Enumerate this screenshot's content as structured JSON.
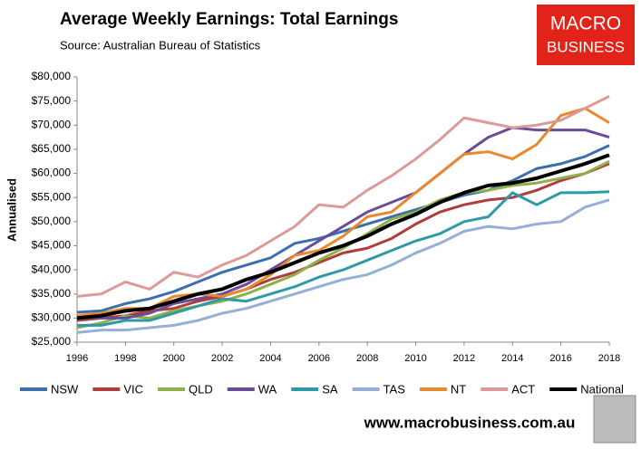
{
  "chart_data": {
    "type": "line",
    "title": "Average Weekly Earnings: Total Earnings",
    "subtitle": "Source: Australian Bureau of Statistics",
    "ylabel": "Annualised",
    "x": [
      1996,
      1997,
      1998,
      1999,
      2000,
      2001,
      2002,
      2003,
      2004,
      2005,
      2006,
      2007,
      2008,
      2009,
      2010,
      2011,
      2012,
      2013,
      2014,
      2015,
      2016,
      2017,
      2018
    ],
    "xlim": [
      1996,
      2018
    ],
    "xticks": [
      1996,
      1998,
      2000,
      2002,
      2004,
      2006,
      2008,
      2010,
      2012,
      2014,
      2016,
      2018
    ],
    "ylim": [
      25000,
      80000
    ],
    "yticks": [
      {
        "value": 25000,
        "label": "$25,000"
      },
      {
        "value": 30000,
        "label": "$30,000"
      },
      {
        "value": 35000,
        "label": "$35,000"
      },
      {
        "value": 40000,
        "label": "$40,000"
      },
      {
        "value": 45000,
        "label": "$45,000"
      },
      {
        "value": 50000,
        "label": "$50,000"
      },
      {
        "value": 55000,
        "label": "$55,000"
      },
      {
        "value": 60000,
        "label": "$60,000"
      },
      {
        "value": 65000,
        "label": "$65,000"
      },
      {
        "value": 70000,
        "label": "$70,000"
      },
      {
        "value": 75000,
        "label": "$75,000"
      },
      {
        "value": 80000,
        "label": "$80,000"
      }
    ],
    "legend": "bottom",
    "series": [
      {
        "name": "NSW",
        "color": "#3d6fad",
        "values": [
          31200,
          31500,
          33000,
          34000,
          35500,
          37500,
          39500,
          41000,
          42500,
          45500,
          46500,
          48000,
          49500,
          51000,
          52500,
          54000,
          55500,
          56500,
          58500,
          61000,
          62000,
          63500,
          65800
        ]
      },
      {
        "name": "VIC",
        "color": "#b03c3c",
        "values": [
          29500,
          30000,
          30500,
          31500,
          32000,
          33500,
          34500,
          36000,
          38000,
          39500,
          41500,
          43500,
          44500,
          46500,
          49500,
          52000,
          53500,
          54500,
          55000,
          56500,
          58500,
          60000,
          62000
        ]
      },
      {
        "name": "QLD",
        "color": "#8fb04a",
        "values": [
          28000,
          29000,
          30500,
          30000,
          31500,
          32500,
          33500,
          35000,
          37000,
          39000,
          42000,
          44500,
          47500,
          50500,
          52000,
          54500,
          56000,
          56500,
          57500,
          58000,
          59000,
          60000,
          62500
        ]
      },
      {
        "name": "WA",
        "color": "#6b4c96",
        "values": [
          30000,
          30000,
          30000,
          31000,
          33000,
          34000,
          35000,
          37000,
          40000,
          43000,
          46000,
          49000,
          52000,
          54000,
          56000,
          60000,
          64000,
          67500,
          69500,
          69000,
          69000,
          69000,
          67500
        ]
      },
      {
        "name": "SA",
        "color": "#2e9aa8",
        "values": [
          28500,
          28500,
          29500,
          29500,
          31000,
          32500,
          34000,
          33500,
          35000,
          36500,
          38500,
          40000,
          42000,
          44000,
          46000,
          47500,
          50000,
          51000,
          56000,
          53500,
          56000,
          56000,
          56200
        ]
      },
      {
        "name": "TAS",
        "color": "#95afd6",
        "values": [
          27000,
          27500,
          27500,
          28000,
          28500,
          29500,
          31000,
          32000,
          33500,
          35000,
          36500,
          38000,
          39000,
          41000,
          43500,
          45500,
          48000,
          49000,
          48500,
          49500,
          50000,
          53000,
          54500
        ]
      },
      {
        "name": "NT",
        "color": "#e8892e",
        "values": [
          30500,
          31000,
          32000,
          32000,
          34500,
          35000,
          34500,
          36000,
          39000,
          43000,
          44000,
          47000,
          51000,
          52000,
          56000,
          60000,
          64000,
          64500,
          63000,
          66000,
          72000,
          73500,
          70500
        ]
      },
      {
        "name": "ACT",
        "color": "#dc9a9a",
        "values": [
          34500,
          35000,
          37500,
          36000,
          39500,
          38500,
          41000,
          43000,
          46000,
          49000,
          53500,
          53000,
          56500,
          59500,
          63000,
          67000,
          71500,
          70500,
          69500,
          70000,
          71000,
          73500,
          76000
        ]
      },
      {
        "name": "National",
        "color": "#000000",
        "values": [
          30000,
          30500,
          31500,
          32000,
          33500,
          35000,
          36000,
          38000,
          39500,
          41500,
          43500,
          45000,
          47000,
          49500,
          51500,
          54000,
          56000,
          57500,
          58000,
          59000,
          60500,
          62000,
          63800
        ]
      }
    ]
  },
  "branding": {
    "logo_top": "MACRO",
    "logo_bottom": "BUSINESS",
    "url": "www.macrobusiness.com.au"
  }
}
